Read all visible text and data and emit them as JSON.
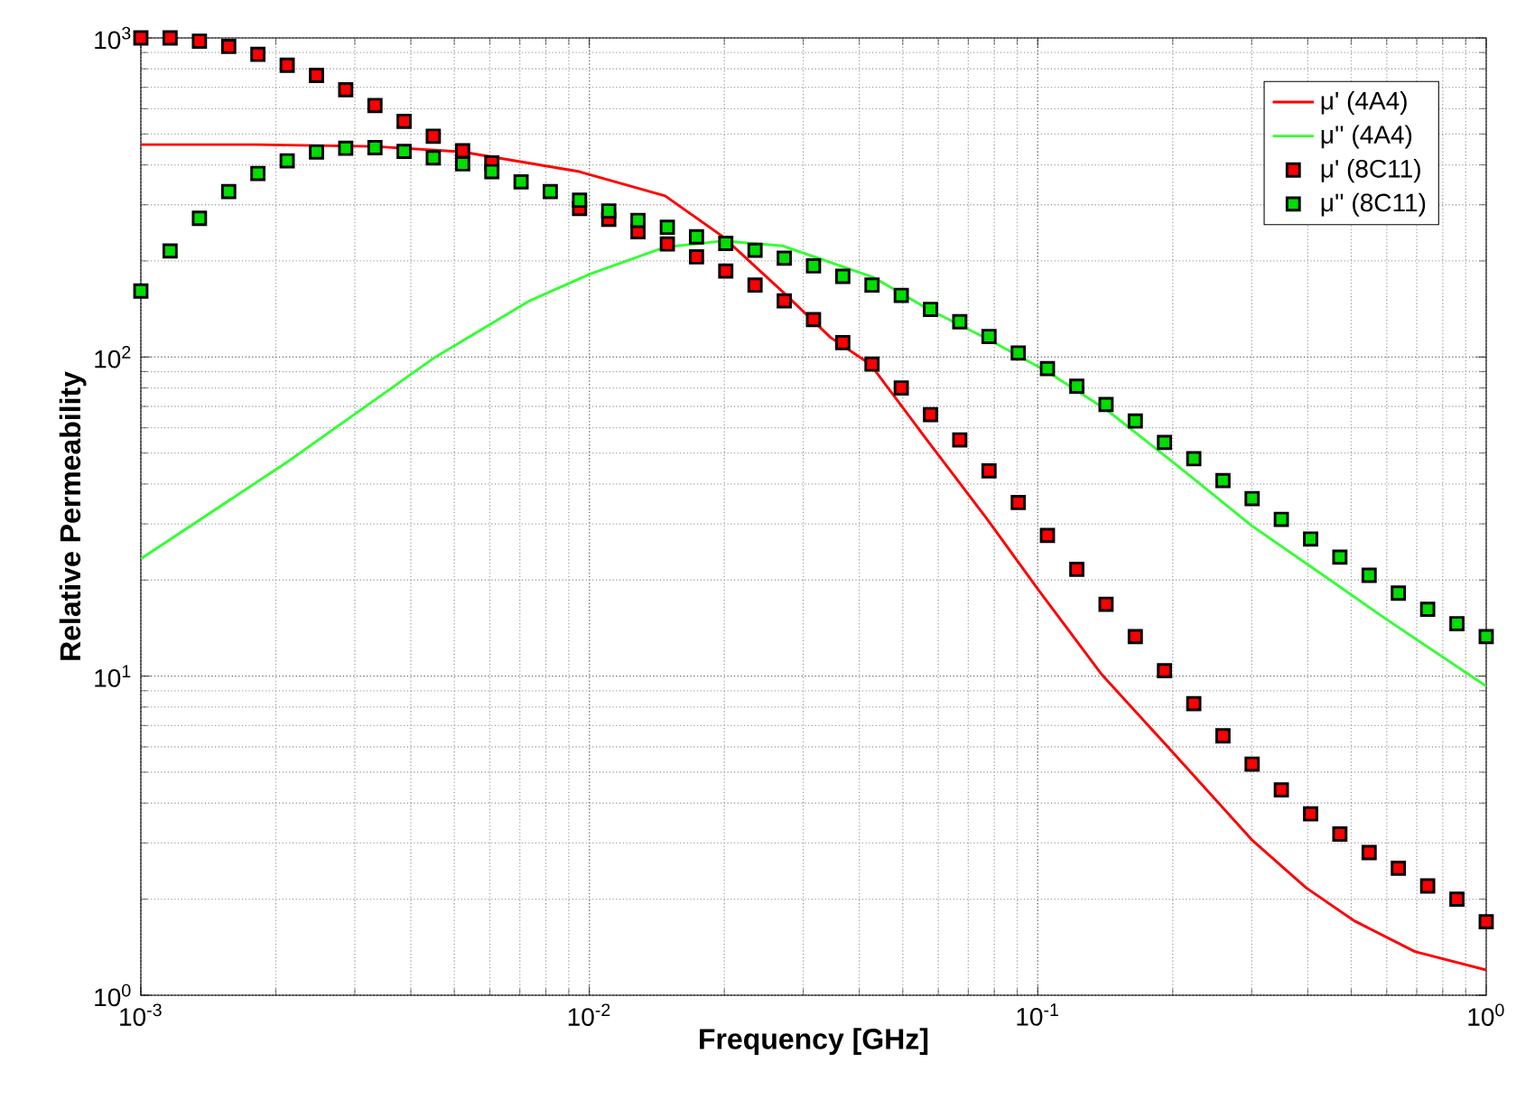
{
  "chart_data": {
    "type": "line",
    "xlabel": "Frequency [GHz]",
    "ylabel": "Relative Permeability",
    "log": "xy",
    "grid": true,
    "legend": "top right",
    "xlim": [
      0.001,
      1
    ],
    "ylim": [
      1,
      1000
    ],
    "xticks": [
      {
        "value": 0.001,
        "label": "10$^{-3}$"
      },
      {
        "value": 0.01,
        "label": "10$^{-2}$"
      },
      {
        "value": 0.1,
        "label": "10$^{-1}$"
      },
      {
        "value": 1,
        "label": "10$^{0}$"
      }
    ],
    "yticks": [
      {
        "value": 1,
        "label": "10$^{0}$"
      },
      {
        "value": 10,
        "label": "10$^{1}$"
      },
      {
        "value": 100,
        "label": "10$^{2}$"
      },
      {
        "value": 1000,
        "label": "10$^{3}$"
      }
    ],
    "series": [
      {
        "name": "μ' (4A4)",
        "type": "line",
        "color": "#ff0000",
        "x": [
          0.001,
          0.00181,
          0.0033,
          0.00518,
          0.0095,
          0.01476,
          0.0198,
          0.027,
          0.03455,
          0.0423,
          0.0566,
          0.0772,
          0.1004,
          0.139,
          0.195,
          0.3,
          0.397,
          0.508,
          0.693,
          1
        ],
        "values": [
          463,
          463,
          457,
          440,
          381,
          320,
          239,
          160,
          115,
          95,
          55,
          31,
          18.6,
          10.1,
          6.0,
          3.07,
          2.17,
          1.71,
          1.37,
          1.2
        ]
      },
      {
        "name": "μ'' (4A4)",
        "type": "line",
        "color": "#33ff33",
        "x": [
          0.001,
          0.00214,
          0.00449,
          0.00736,
          0.01004,
          0.01476,
          0.0198,
          0.027,
          0.0429,
          0.0566,
          0.0772,
          0.105,
          0.143,
          0.2075,
          0.3,
          0.4355,
          0.5935,
          1
        ],
        "values": [
          23.3,
          47.3,
          99,
          150,
          182,
          221,
          231,
          223,
          178,
          142,
          114,
          90,
          68,
          45,
          29.6,
          20.6,
          15.2,
          9.3
        ]
      },
      {
        "name": "μ' (8C11)",
        "type": "scatter",
        "marker": "square",
        "color": "#ff0000",
        "x": [
          0.001,
          0.001162,
          0.001351,
          0.00157,
          0.001824,
          0.00212,
          0.002464,
          0.002863,
          0.003327,
          0.003864,
          0.004489,
          0.005218,
          0.006063,
          0.007045,
          0.008185,
          0.009512,
          0.01105,
          0.01284,
          0.01493,
          0.01734,
          0.02015,
          0.02342,
          0.02721,
          0.03162,
          0.03675,
          0.0427,
          0.04962,
          0.05766,
          0.067,
          0.07786,
          0.09048,
          0.1051,
          0.1222,
          0.142,
          0.165,
          0.1917,
          0.2228,
          0.2588,
          0.3006,
          0.3493,
          0.4059,
          0.4717,
          0.5482,
          0.637,
          0.7404,
          0.8604,
          1
        ],
        "values": [
          1000,
          1000,
          977,
          940,
          888,
          821,
          763,
          688,
          614,
          548,
          492,
          443,
          406,
          null,
          null,
          292,
          270,
          247,
          226,
          206,
          186,
          168,
          150,
          131,
          111,
          95,
          80,
          66,
          55,
          44,
          35,
          27.6,
          21.6,
          16.8,
          13.3,
          10.4,
          8.2,
          6.5,
          5.3,
          4.4,
          3.7,
          3.2,
          2.8,
          2.5,
          2.2,
          2.0,
          1.7
        ]
      },
      {
        "name": "μ'' (8C11)",
        "type": "scatter",
        "marker": "square",
        "color": "#00dd00",
        "x": [
          0.001,
          0.001162,
          0.001351,
          0.00157,
          0.001824,
          0.00212,
          0.002464,
          0.002863,
          0.003327,
          0.003864,
          0.004489,
          0.005218,
          0.006063,
          0.007045,
          0.008185,
          0.009512,
          0.01105,
          0.01284,
          0.01493,
          0.01734,
          0.02015,
          0.02342,
          0.02721,
          0.03162,
          0.03675,
          0.0427,
          0.04962,
          0.05766,
          0.067,
          0.07786,
          0.09048,
          0.1051,
          0.1222,
          0.142,
          0.165,
          0.1917,
          0.2228,
          0.2588,
          0.3006,
          0.3493,
          0.4059,
          0.4717,
          0.5482,
          0.637,
          0.7404,
          0.8604,
          1
        ],
        "values": [
          161,
          215,
          272,
          330,
          376,
          412,
          439,
          451,
          453,
          441,
          421,
          403,
          381,
          354,
          330,
          310,
          287,
          268,
          255,
          238,
          227,
          216,
          204,
          193,
          179,
          168,
          156,
          141,
          129,
          116,
          103,
          92,
          81,
          71,
          63,
          54,
          48,
          41,
          36,
          31,
          26.9,
          23.6,
          20.7,
          18.2,
          16.2,
          14.6,
          13.3
        ]
      }
    ]
  }
}
